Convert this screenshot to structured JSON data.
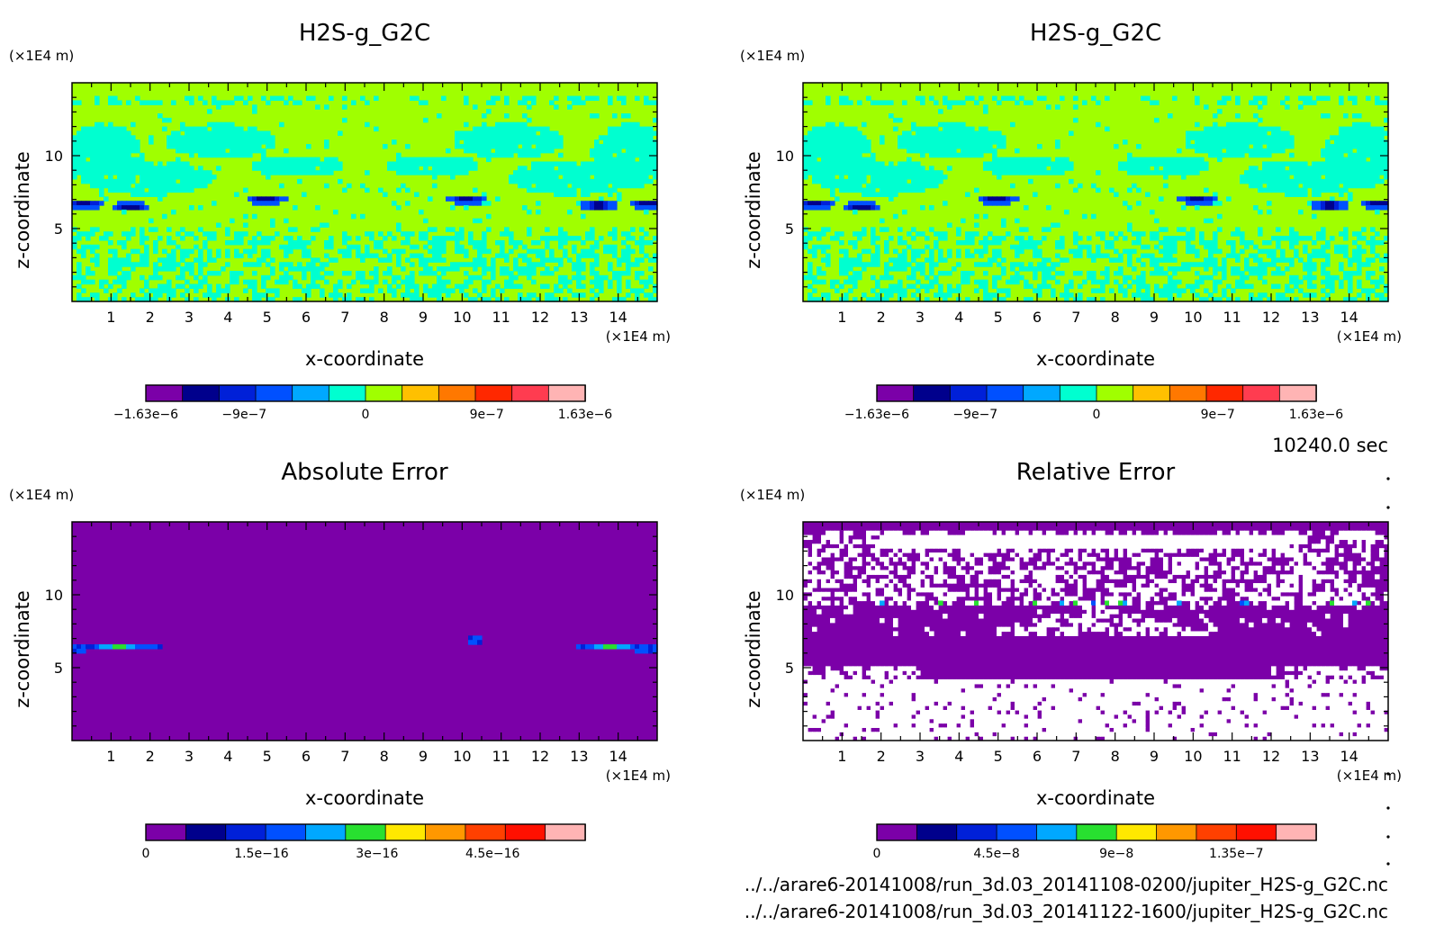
{
  "time_stamp": "10240.0 sec",
  "footer": {
    "line1": "../../arare6-20141008/run_3d.03_20141108-0200/jupiter_H2S-g_G2C.nc",
    "line2": "../../arare6-20141008/run_3d.03_20141122-1600/jupiter_H2S-g_G2C.nc"
  },
  "chart_data": [
    {
      "type": "heatmap",
      "title": "H2S-g_G2C",
      "xlabel": "x-coordinate",
      "ylabel": "z-coordinate",
      "xunit": "(×1E4 m)",
      "yunit": "(×1E4 m)",
      "xlim": [
        0,
        15
      ],
      "ylim": [
        0,
        15
      ],
      "xticks": [
        1,
        2,
        3,
        4,
        5,
        6,
        7,
        8,
        9,
        10,
        11,
        12,
        13,
        14
      ],
      "yticks": [
        5,
        10
      ],
      "colorbar": {
        "colors": [
          "#7b00a8",
          "#00008c",
          "#0020d8",
          "#0050ff",
          "#00a8ff",
          "#00ffd0",
          "#a0ff00",
          "#ffc000",
          "#ff7800",
          "#ff2800",
          "#ff3c50",
          "#ffb4b4"
        ],
        "labels": [
          "-1.63e-6",
          "-9e-7",
          "0",
          "9e-7",
          "1.63e-6"
        ],
        "label_values": [
          -1.63e-06,
          -9e-07,
          0,
          9e-07,
          1.63e-06
        ],
        "range": [
          -1.63e-06,
          1.63e-06
        ]
      }
    },
    {
      "type": "heatmap",
      "title": "H2S-g_G2C",
      "xlabel": "x-coordinate",
      "ylabel": "z-coordinate",
      "xunit": "(×1E4 m)",
      "yunit": "(×1E4 m)",
      "xlim": [
        0,
        15
      ],
      "ylim": [
        0,
        15
      ],
      "xticks": [
        1,
        2,
        3,
        4,
        5,
        6,
        7,
        8,
        9,
        10,
        11,
        12,
        13,
        14
      ],
      "yticks": [
        5,
        10
      ],
      "colorbar": {
        "colors": [
          "#7b00a8",
          "#00008c",
          "#0020d8",
          "#0050ff",
          "#00a8ff",
          "#00ffd0",
          "#a0ff00",
          "#ffc000",
          "#ff7800",
          "#ff2800",
          "#ff3c50",
          "#ffb4b4"
        ],
        "labels": [
          "-1.63e-6",
          "-9e-7",
          "0",
          "9e-7",
          "1.63e-6"
        ],
        "label_values": [
          -1.63e-06,
          -9e-07,
          0,
          9e-07,
          1.63e-06
        ],
        "range": [
          -1.63e-06,
          1.63e-06
        ]
      }
    },
    {
      "type": "heatmap",
      "title": "Absolute Error",
      "xlabel": "x-coordinate",
      "ylabel": "z-coordinate",
      "xunit": "(×1E4 m)",
      "yunit": "(×1E4 m)",
      "xlim": [
        0,
        15
      ],
      "ylim": [
        0,
        15
      ],
      "xticks": [
        1,
        2,
        3,
        4,
        5,
        6,
        7,
        8,
        9,
        10,
        11,
        12,
        13,
        14
      ],
      "yticks": [
        5,
        10
      ],
      "colorbar": {
        "colors": [
          "#7b00a8",
          "#00008c",
          "#0020d8",
          "#0050ff",
          "#00a8ff",
          "#28e030",
          "#ffe800",
          "#ff9800",
          "#ff4000",
          "#ff1000",
          "#ffb4b4"
        ],
        "labels": [
          "0",
          "1.5e-16",
          "3e-16",
          "4.5e-16"
        ],
        "label_values": [
          0,
          1.5e-16,
          3e-16,
          4.5e-16
        ],
        "range": [
          0,
          5.7e-16
        ]
      }
    },
    {
      "type": "heatmap",
      "title": "Relative Error",
      "xlabel": "x-coordinate",
      "ylabel": "z-coordinate",
      "xunit": "(×1E4 m)",
      "yunit": "(×1E4 m)",
      "xlim": [
        0,
        15
      ],
      "ylim": [
        0,
        15
      ],
      "xticks": [
        1,
        2,
        3,
        4,
        5,
        6,
        7,
        8,
        9,
        10,
        11,
        12,
        13,
        14
      ],
      "yticks": [
        5,
        10
      ],
      "colorbar": {
        "colors": [
          "#7b00a8",
          "#00008c",
          "#0020d8",
          "#0050ff",
          "#00a8ff",
          "#28e030",
          "#ffe800",
          "#ff9800",
          "#ff4000",
          "#ff1000",
          "#ffb4b4"
        ],
        "labels": [
          "0",
          "4.5e-8",
          "9e-8",
          "1.35e-7"
        ],
        "label_values": [
          0,
          4.5e-08,
          9e-08,
          1.35e-07
        ],
        "range": [
          0,
          1.65e-07
        ]
      }
    }
  ]
}
